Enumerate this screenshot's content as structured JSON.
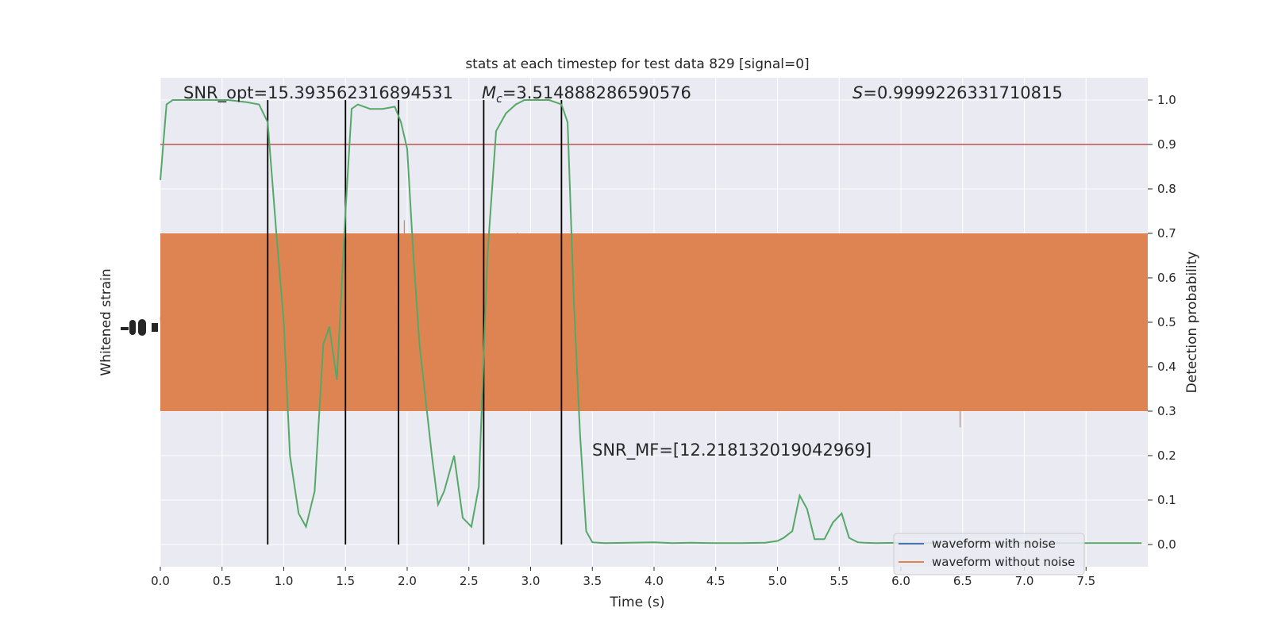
{
  "chart_data": {
    "type": "line",
    "title": "stats at each timestep for test data 829 [signal=0]",
    "xlabel": "Time (s)",
    "ylabel_left": "Whitened strain",
    "ylabel_right": "Detection probability",
    "xlim": [
      0.0,
      8.0
    ],
    "ylim_right": [
      -0.05,
      1.05
    ],
    "x_ticks": [
      "0.0",
      "0.5",
      "1.0",
      "1.5",
      "2.0",
      "2.5",
      "3.0",
      "3.5",
      "4.0",
      "4.5",
      "5.0",
      "5.5",
      "6.0",
      "6.5",
      "7.0",
      "7.5"
    ],
    "x_tick_values": [
      0.0,
      0.5,
      1.0,
      1.5,
      2.0,
      2.5,
      3.0,
      3.5,
      4.0,
      4.5,
      5.0,
      5.5,
      6.0,
      6.5,
      7.0,
      7.5
    ],
    "y_ticks_right": [
      "0.0",
      "0.1",
      "0.2",
      "0.3",
      "0.4",
      "0.5",
      "0.6",
      "0.7",
      "0.8",
      "0.9",
      "1.0"
    ],
    "y_tick_values_right": [
      0.0,
      0.1,
      0.2,
      0.3,
      0.4,
      0.5,
      0.6,
      0.7,
      0.8,
      0.9,
      1.0
    ],
    "threshold": 0.9,
    "vertical_lines": [
      0.87,
      1.5,
      1.93,
      2.62,
      3.25
    ],
    "annotations": {
      "snr_opt": "SNR_opt=15.393562316894531",
      "mc_symbol": "M",
      "mc_sub": "c",
      "mc_value": "=3.514888286590576",
      "s_symbol": "S",
      "s_value": "=0.9999226331710815",
      "snr_mf": "SNR_MF=[12.218132019042969]"
    },
    "legend": {
      "placement": "lower-right",
      "entries": [
        "waveform with noise",
        "waveform without noise"
      ]
    },
    "colors": {
      "noise": "#4c72b0",
      "strain": "#dd8452",
      "probability": "#55a868",
      "threshold": "#c44e52",
      "vline": "#000000",
      "background": "#eaeaf2",
      "grid": "#ffffff"
    },
    "series": [
      {
        "name": "waveform without noise",
        "kind": "strain",
        "x_range": [
          0.0,
          8.0
        ],
        "amplitude_range": [
          -1.0,
          1.0
        ]
      },
      {
        "name": "",
        "kind": "probability",
        "x": [
          0.0,
          0.05,
          0.1,
          0.15,
          0.25,
          0.4,
          0.55,
          0.7,
          0.8,
          0.87,
          0.94,
          1.0,
          1.05,
          1.12,
          1.18,
          1.25,
          1.32,
          1.37,
          1.43,
          1.5,
          1.55,
          1.6,
          1.65,
          1.7,
          1.8,
          1.9,
          1.95,
          2.0,
          2.05,
          2.1,
          2.2,
          2.25,
          2.3,
          2.38,
          2.45,
          2.52,
          2.58,
          2.65,
          2.72,
          2.8,
          2.88,
          2.95,
          3.05,
          3.15,
          3.25,
          3.3,
          3.35,
          3.4,
          3.45,
          3.5,
          3.6,
          3.8,
          4.0,
          4.15,
          4.3,
          4.5,
          4.7,
          4.9,
          5.0,
          5.05,
          5.12,
          5.18,
          5.24,
          5.3,
          5.38,
          5.45,
          5.52,
          5.58,
          5.65,
          5.7,
          5.8,
          6.0,
          6.1,
          6.2,
          6.3,
          6.5,
          6.8,
          7.0,
          7.2,
          7.4,
          7.6,
          7.8,
          7.95
        ],
        "y": [
          0.82,
          0.99,
          1.0,
          1.0,
          1.0,
          1.0,
          1.0,
          0.995,
          0.99,
          0.95,
          0.7,
          0.5,
          0.2,
          0.07,
          0.04,
          0.12,
          0.45,
          0.49,
          0.37,
          0.75,
          0.98,
          0.99,
          0.985,
          0.98,
          0.98,
          0.985,
          0.95,
          0.89,
          0.65,
          0.45,
          0.2,
          0.09,
          0.12,
          0.2,
          0.06,
          0.04,
          0.13,
          0.65,
          0.93,
          0.97,
          0.99,
          1.0,
          1.0,
          1.0,
          0.99,
          0.95,
          0.55,
          0.25,
          0.03,
          0.005,
          0.003,
          0.004,
          0.005,
          0.003,
          0.004,
          0.003,
          0.003,
          0.004,
          0.008,
          0.015,
          0.03,
          0.11,
          0.08,
          0.012,
          0.012,
          0.05,
          0.07,
          0.015,
          0.005,
          0.004,
          0.003,
          0.004,
          0.003,
          0.003,
          0.003,
          0.004,
          0.003,
          0.003,
          0.003,
          0.003,
          0.003,
          0.003,
          0.003
        ]
      }
    ]
  }
}
